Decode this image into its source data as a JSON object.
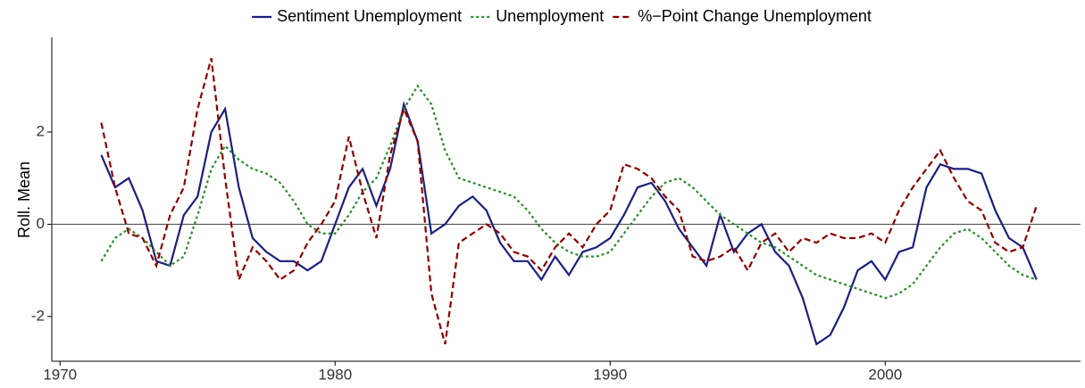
{
  "chart_data": {
    "type": "line",
    "y_label": "Roll. Mean",
    "x": [
      1971.5,
      1972,
      1972.5,
      1973,
      1973.5,
      1974,
      1974.5,
      1975,
      1975.5,
      1976,
      1976.5,
      1977,
      1977.5,
      1978,
      1978.5,
      1979,
      1979.5,
      1980,
      1980.5,
      1981,
      1981.5,
      1982,
      1982.5,
      1983,
      1983.5,
      1984,
      1984.5,
      1985,
      1985.5,
      1986,
      1986.5,
      1987,
      1987.5,
      1988,
      1988.5,
      1989,
      1989.5,
      1990,
      1990.5,
      1991,
      1991.5,
      1992,
      1992.5,
      1993,
      1993.5,
      1994,
      1994.5,
      1995,
      1995.5,
      1996,
      1996.5,
      1997,
      1997.5,
      1998,
      1998.5,
      1999,
      1999.5,
      2000,
      2000.5,
      2001,
      2001.5,
      2002,
      2002.5,
      2003,
      2003.5,
      2004,
      2004.5,
      2005,
      2005.5
    ],
    "series": [
      {
        "name": "Sentiment Unemployment",
        "color": "#1b1f7e",
        "dash": "none",
        "values": [
          1.5,
          0.8,
          1.0,
          0.3,
          -0.8,
          -0.9,
          0.2,
          0.6,
          2.0,
          2.5,
          0.8,
          -0.3,
          -0.6,
          -0.8,
          -0.8,
          -1.0,
          -0.8,
          0.0,
          0.8,
          1.2,
          0.4,
          1.2,
          2.6,
          1.8,
          -0.2,
          0.0,
          0.4,
          0.6,
          0.3,
          -0.4,
          -0.8,
          -0.8,
          -1.2,
          -0.7,
          -1.1,
          -0.6,
          -0.5,
          -0.3,
          0.2,
          0.8,
          0.9,
          0.5,
          -0.1,
          -0.5,
          -0.9,
          0.2,
          -0.6,
          -0.2,
          0.0,
          -0.6,
          -0.9,
          -1.6,
          -2.6,
          -2.4,
          -1.8,
          -1.0,
          -0.8,
          -1.2,
          -0.6,
          -0.5,
          0.8,
          1.3,
          1.2,
          1.2,
          1.1,
          0.3,
          -0.3,
          -0.5,
          -1.2
        ]
      },
      {
        "name": "Unemployment",
        "color": "#2e8b2e",
        "dash": "3,3",
        "values": [
          -0.8,
          -0.3,
          -0.1,
          -0.3,
          -0.6,
          -0.9,
          -0.7,
          0.2,
          1.2,
          1.7,
          1.4,
          1.2,
          1.1,
          0.9,
          0.5,
          0.0,
          -0.2,
          -0.2,
          0.2,
          0.7,
          1.0,
          1.7,
          2.5,
          3.0,
          2.6,
          1.6,
          1.0,
          0.9,
          0.8,
          0.7,
          0.6,
          0.3,
          -0.1,
          -0.4,
          -0.6,
          -0.7,
          -0.7,
          -0.6,
          -0.2,
          0.2,
          0.6,
          0.9,
          1.0,
          0.8,
          0.5,
          0.2,
          0.0,
          -0.2,
          -0.4,
          -0.5,
          -0.7,
          -0.9,
          -1.1,
          -1.2,
          -1.3,
          -1.4,
          -1.5,
          -1.6,
          -1.5,
          -1.3,
          -0.9,
          -0.5,
          -0.2,
          -0.1,
          -0.3,
          -0.6,
          -0.9,
          -1.1,
          -1.2
        ]
      },
      {
        "name": "%−Point Change Unemployment",
        "color": "#8b0000",
        "dash": "7,4",
        "values": [
          2.2,
          0.8,
          -0.2,
          -0.3,
          -0.9,
          0.2,
          0.8,
          2.5,
          3.6,
          1.0,
          -1.2,
          -0.5,
          -0.8,
          -1.2,
          -1.0,
          -0.4,
          0.0,
          0.5,
          1.9,
          0.7,
          -0.3,
          1.5,
          2.5,
          1.8,
          -1.5,
          -2.6,
          -0.4,
          -0.2,
          0.0,
          -0.2,
          -0.6,
          -0.7,
          -1.0,
          -0.5,
          -0.2,
          -0.5,
          0.0,
          0.3,
          1.3,
          1.2,
          1.0,
          0.6,
          0.3,
          -0.7,
          -0.8,
          -0.7,
          -0.5,
          -1.0,
          -0.4,
          -0.2,
          -0.6,
          -0.3,
          -0.4,
          -0.2,
          -0.3,
          -0.3,
          -0.2,
          -0.4,
          0.3,
          0.8,
          1.2,
          1.6,
          1.0,
          0.5,
          0.3,
          -0.4,
          -0.6,
          -0.5,
          0.4
        ]
      }
    ],
    "xlim": [
      1969.7,
      2007.1
    ],
    "xticks": [
      1970,
      1980,
      1990,
      2000
    ],
    "ylim": [
      -2.97,
      4.05
    ],
    "yticks": [
      -2,
      0,
      2
    ],
    "hline": 0,
    "legend": "top"
  }
}
